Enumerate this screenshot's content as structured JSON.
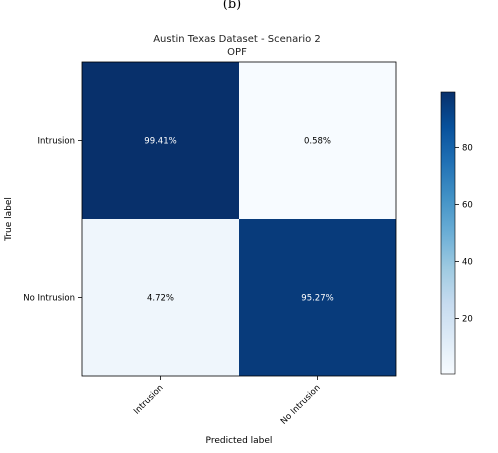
{
  "figure_label": "(b)",
  "chart_data": {
    "type": "heatmap",
    "title": "Austin Texas Dataset - Scenario 2",
    "subtitle": "OPF",
    "xlabel": "Predicted label",
    "ylabel": "True label",
    "x_categories": [
      "Intrusion",
      "No Intrusion"
    ],
    "y_categories": [
      "Intrusion",
      "No Intrusion"
    ],
    "values": [
      [
        99.41,
        0.58
      ],
      [
        4.72,
        95.27
      ]
    ],
    "cell_labels": [
      [
        "99.41%",
        "0.58%"
      ],
      [
        "4.72%",
        "95.27%"
      ]
    ],
    "colormap": "Blues",
    "vmin": 0.58,
    "vmax": 99.41,
    "colorbar_ticks": [
      20,
      40,
      60,
      80
    ],
    "colors": {
      "low": "#f7fbff",
      "high": "#08306b",
      "text_light": "#ffffff",
      "text_dark": "#000000"
    }
  }
}
